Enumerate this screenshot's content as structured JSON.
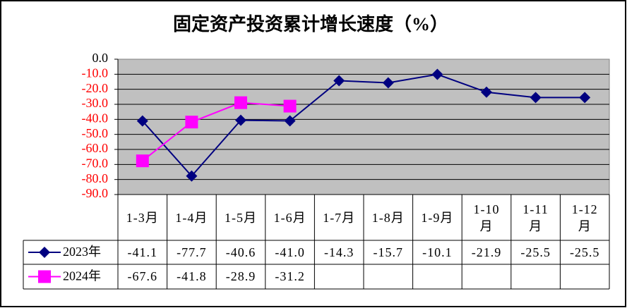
{
  "chart_data": {
    "type": "line",
    "title": "固定资产投资累计增长速度（%）",
    "categories": [
      "1-3月",
      "1-4月",
      "1-5月",
      "1-6月",
      "1-7月",
      "1-8月",
      "1-9月",
      "1-10月",
      "1-11月",
      "1-12月"
    ],
    "series": [
      {
        "name": "2023年",
        "color": "#000080",
        "marker": "diamond",
        "values": [
          -41.1,
          -77.7,
          -40.6,
          -41.0,
          -14.3,
          -15.7,
          -10.1,
          -21.9,
          -25.5,
          -25.5
        ],
        "value_labels": [
          "-41.1",
          "-77.7",
          "-40.6",
          "-41.0",
          "-14.3",
          "-15.7",
          "-10.1",
          "-21.9",
          "-25.5",
          "-25.5"
        ]
      },
      {
        "name": "2024年",
        "color": "#ff00ff",
        "marker": "square",
        "values": [
          -67.6,
          -41.8,
          -28.9,
          -31.2,
          null,
          null,
          null,
          null,
          null,
          null
        ],
        "value_labels": [
          "-67.6",
          "-41.8",
          "-28.9",
          "-31.2",
          null,
          null,
          null,
          null,
          null,
          null
        ]
      }
    ],
    "ylim": [
      -90,
      0
    ],
    "yticks": [
      {
        "value": 0,
        "label": "0.0"
      },
      {
        "value": -10,
        "label": "-10.0"
      },
      {
        "value": -20,
        "label": "-20.0"
      },
      {
        "value": -30,
        "label": "-30.0"
      },
      {
        "value": -40,
        "label": "-40.0"
      },
      {
        "value": -50,
        "label": "-50.0"
      },
      {
        "value": -60,
        "label": "-60.0"
      },
      {
        "value": -70,
        "label": "-70.0"
      },
      {
        "value": -80,
        "label": "-80.0"
      },
      {
        "value": -90,
        "label": "-90.0"
      }
    ],
    "grid": true
  }
}
